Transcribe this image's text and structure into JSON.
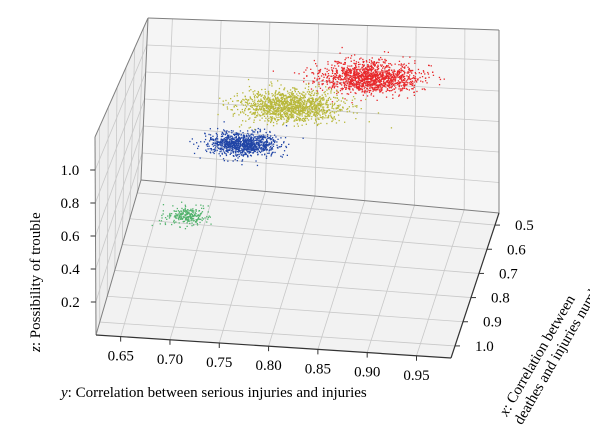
{
  "chart_data": {
    "type": "scatter",
    "dimensions": "3d",
    "grid": true,
    "axes": {
      "x": {
        "label": ": Correlation between",
        "label_line2": "deathes and injuries number",
        "var": "x",
        "range": [
          0.45,
          1.05
        ],
        "ticks": [
          "0.5",
          "0.6",
          "0.7",
          "0.8",
          "0.9",
          "1.0"
        ],
        "tick_values": [
          0.5,
          0.6,
          0.7,
          0.8,
          0.9,
          1.0
        ]
      },
      "y": {
        "label": ": Correlation between serious injuries and injuries",
        "var": "y",
        "range": [
          0.625,
          0.985
        ],
        "ticks": [
          "0.65",
          "0.70",
          "0.75",
          "0.80",
          "0.85",
          "0.90",
          "0.95"
        ],
        "tick_values": [
          0.65,
          0.7,
          0.75,
          0.8,
          0.85,
          0.9,
          0.95
        ]
      },
      "z": {
        "label": ": Possibility of trouble",
        "var": "z",
        "range": [
          0.0,
          1.2
        ],
        "ticks": [
          "0.2",
          "0.4",
          "0.6",
          "0.8",
          "1.0"
        ],
        "tick_values": [
          0.2,
          0.4,
          0.6,
          0.8,
          1.0
        ]
      }
    },
    "series": [
      {
        "color": "#e8282b",
        "center": {
          "x": 0.53,
          "y": 0.86,
          "z": 0.96
        },
        "spread": {
          "x": 0.07,
          "y": 0.05,
          "z": 0.035
        },
        "count": 1400
      },
      {
        "color": "#b8b83a",
        "center": {
          "x": 0.66,
          "y": 0.79,
          "z": 0.93
        },
        "spread": {
          "x": 0.07,
          "y": 0.05,
          "z": 0.035
        },
        "count": 1400
      },
      {
        "color": "#2145a6",
        "center": {
          "x": 0.76,
          "y": 0.75,
          "z": 0.81
        },
        "spread": {
          "x": 0.05,
          "y": 0.035,
          "z": 0.03
        },
        "count": 1000
      },
      {
        "color": "#54b36e",
        "center": {
          "x": 0.97,
          "y": 0.71,
          "z": 0.64
        },
        "spread": {
          "x": 0.04,
          "y": 0.02,
          "z": 0.008
        },
        "count": 260
      }
    ]
  }
}
